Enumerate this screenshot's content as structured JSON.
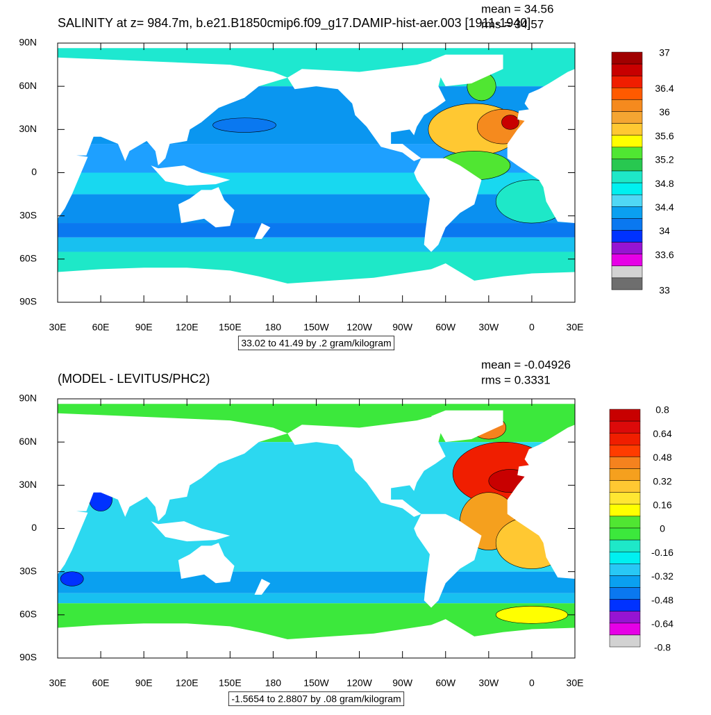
{
  "panels": [
    {
      "title": "SALINITY at z= 984.7m, b.e21.B1850cmip6.f09_g17.DAMIP-hist-aer.003 [1911-1940]",
      "mean": "mean = 34.56",
      "rms": "rms = 34.57",
      "range_note": "33.02 to 41.49 by .2 gram/kilogram",
      "colorbar": {
        "colors": [
          "#a00000",
          "#c80000",
          "#f01e00",
          "#ff5a00",
          "#f58a1e",
          "#f5a532",
          "#ffc832",
          "#ffff00",
          "#50e632",
          "#28c850",
          "#1ee8c8",
          "#00f0f0",
          "#50d8f5",
          "#0aa0f0",
          "#0a78f0",
          "#0032ff",
          "#9614d2",
          "#e600e6",
          "#d2d2d2",
          "#6e6e6e"
        ],
        "labels": [
          "37",
          "36.4",
          "36",
          "35.6",
          "35.2",
          "34.8",
          "34.4",
          "34",
          "33.6",
          "33"
        ]
      }
    },
    {
      "title": "(MODEL - LEVITUS/PHC2)",
      "mean": "mean = -0.04926",
      "rms": "rms = 0.3331",
      "range_note": "-1.5654 to 2.8807 by .08 gram/kilogram",
      "colorbar": {
        "colors": [
          "#c80000",
          "#dc0a0a",
          "#f01e00",
          "#ff3c00",
          "#f5821e",
          "#f5a01e",
          "#ffc832",
          "#ffe632",
          "#ffff00",
          "#50e632",
          "#3ce83c",
          "#1ee8c8",
          "#00f0f0",
          "#28c8f5",
          "#0aa0f0",
          "#0a78f0",
          "#0032ff",
          "#9614d2",
          "#e600e6",
          "#d2d2d2"
        ],
        "labels": [
          "0.8",
          "0.64",
          "0.48",
          "0.32",
          "0.16",
          "0",
          "-0.16",
          "-0.32",
          "-0.48",
          "-0.64",
          "-0.8"
        ]
      }
    }
  ],
  "lat_labels": [
    "90N",
    "60N",
    "30N",
    "0",
    "30S",
    "60S",
    "90S"
  ],
  "lon_labels": [
    "30E",
    "60E",
    "90E",
    "120E",
    "150E",
    "180",
    "150W",
    "120W",
    "90W",
    "60W",
    "30W",
    "0",
    "30E"
  ]
}
